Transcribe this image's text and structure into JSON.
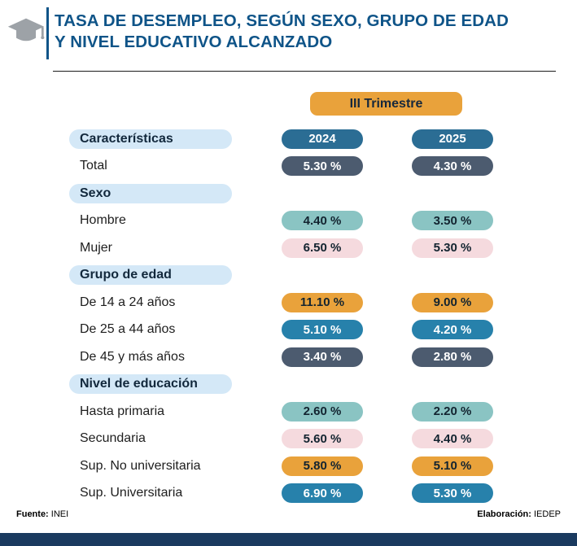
{
  "header": {
    "title_line1": "TASA DE DESEMPLEO, SEGÚN SEXO, GRUPO DE EDAD",
    "title_line2": "Y NIVEL EDUCATIVO ALCANZADO",
    "badge_label": "III Trimestre"
  },
  "table": {
    "header_label": "Características",
    "year_cols": [
      "2024",
      "2025"
    ],
    "rows": [
      {
        "type": "data",
        "label": "Total",
        "values": [
          "5.30 %",
          "4.30 %"
        ],
        "style": "slate"
      },
      {
        "type": "section",
        "label": "Sexo"
      },
      {
        "type": "data",
        "label": "Hombre",
        "values": [
          "4.40 %",
          "3.50 %"
        ],
        "style": "teal"
      },
      {
        "type": "data",
        "label": "Mujer",
        "values": [
          "6.50 %",
          "5.30 %"
        ],
        "style": "pink"
      },
      {
        "type": "section",
        "label": "Grupo de edad"
      },
      {
        "type": "data",
        "label": "De 14 a 24 años",
        "values": [
          "11.10 %",
          "9.00 %"
        ],
        "style": "orange"
      },
      {
        "type": "data",
        "label": "De 25 a 44 años",
        "values": [
          "5.10 %",
          "4.20 %"
        ],
        "style": "blue"
      },
      {
        "type": "data",
        "label": "De 45 y más años",
        "values": [
          "3.40 %",
          "2.80 %"
        ],
        "style": "slate"
      },
      {
        "type": "section",
        "label": "Nivel de educación"
      },
      {
        "type": "data",
        "label": "Hasta primaria",
        "values": [
          "2.60 %",
          "2.20 %"
        ],
        "style": "teal"
      },
      {
        "type": "data",
        "label": "Secundaria",
        "values": [
          "5.60 %",
          "4.40 %"
        ],
        "style": "pink"
      },
      {
        "type": "data",
        "label": "Sup. No universitaria",
        "values": [
          "5.80 %",
          "5.10 %"
        ],
        "style": "orange"
      },
      {
        "type": "data",
        "label": "Sup. Universitaria",
        "values": [
          "6.90 %",
          "5.30 %"
        ],
        "style": "blue"
      }
    ]
  },
  "footer": {
    "source_label": "Fuente:",
    "source_value": "INEI",
    "elaboration_label": "Elaboración:",
    "elaboration_value": "IEDEP"
  },
  "palette": {
    "title_blue": "#0F5488",
    "badge_orange": "#E9A23B",
    "year_header_blue": "#2B6D94",
    "section_pill_bg": "#D4E8F7",
    "pill_slate": "#4C5B6F",
    "pill_teal": "#8AC4C3",
    "pill_pink": "#F5DADE",
    "pill_orange": "#E9A23B",
    "pill_blue": "#2781AB",
    "bottom_bar": "#1A3A5F",
    "cap_icon_gray": "#9DA2A7"
  },
  "chart_data": {
    "type": "table",
    "title": "Tasa de desempleo, según sexo, grupo de edad y nivel educativo alcanzado",
    "period": "III Trimestre",
    "unit": "%",
    "columns": [
      "Características",
      "2024",
      "2025"
    ],
    "groups": [
      {
        "name": "Total",
        "rows": [
          {
            "label": "Total",
            "y2024": 5.3,
            "y2025": 4.3
          }
        ]
      },
      {
        "name": "Sexo",
        "rows": [
          {
            "label": "Hombre",
            "y2024": 4.4,
            "y2025": 3.5
          },
          {
            "label": "Mujer",
            "y2024": 6.5,
            "y2025": 5.3
          }
        ]
      },
      {
        "name": "Grupo de edad",
        "rows": [
          {
            "label": "De 14 a 24 años",
            "y2024": 11.1,
            "y2025": 9.0
          },
          {
            "label": "De 25 a 44 años",
            "y2024": 5.1,
            "y2025": 4.2
          },
          {
            "label": "De 45 y más años",
            "y2024": 3.4,
            "y2025": 2.8
          }
        ]
      },
      {
        "name": "Nivel de educación",
        "rows": [
          {
            "label": "Hasta primaria",
            "y2024": 2.6,
            "y2025": 2.2
          },
          {
            "label": "Secundaria",
            "y2024": 5.6,
            "y2025": 4.4
          },
          {
            "label": "Sup. No universitaria",
            "y2024": 5.8,
            "y2025": 5.1
          },
          {
            "label": "Sup. Universitaria",
            "y2024": 6.9,
            "y2025": 5.3
          }
        ]
      }
    ]
  }
}
